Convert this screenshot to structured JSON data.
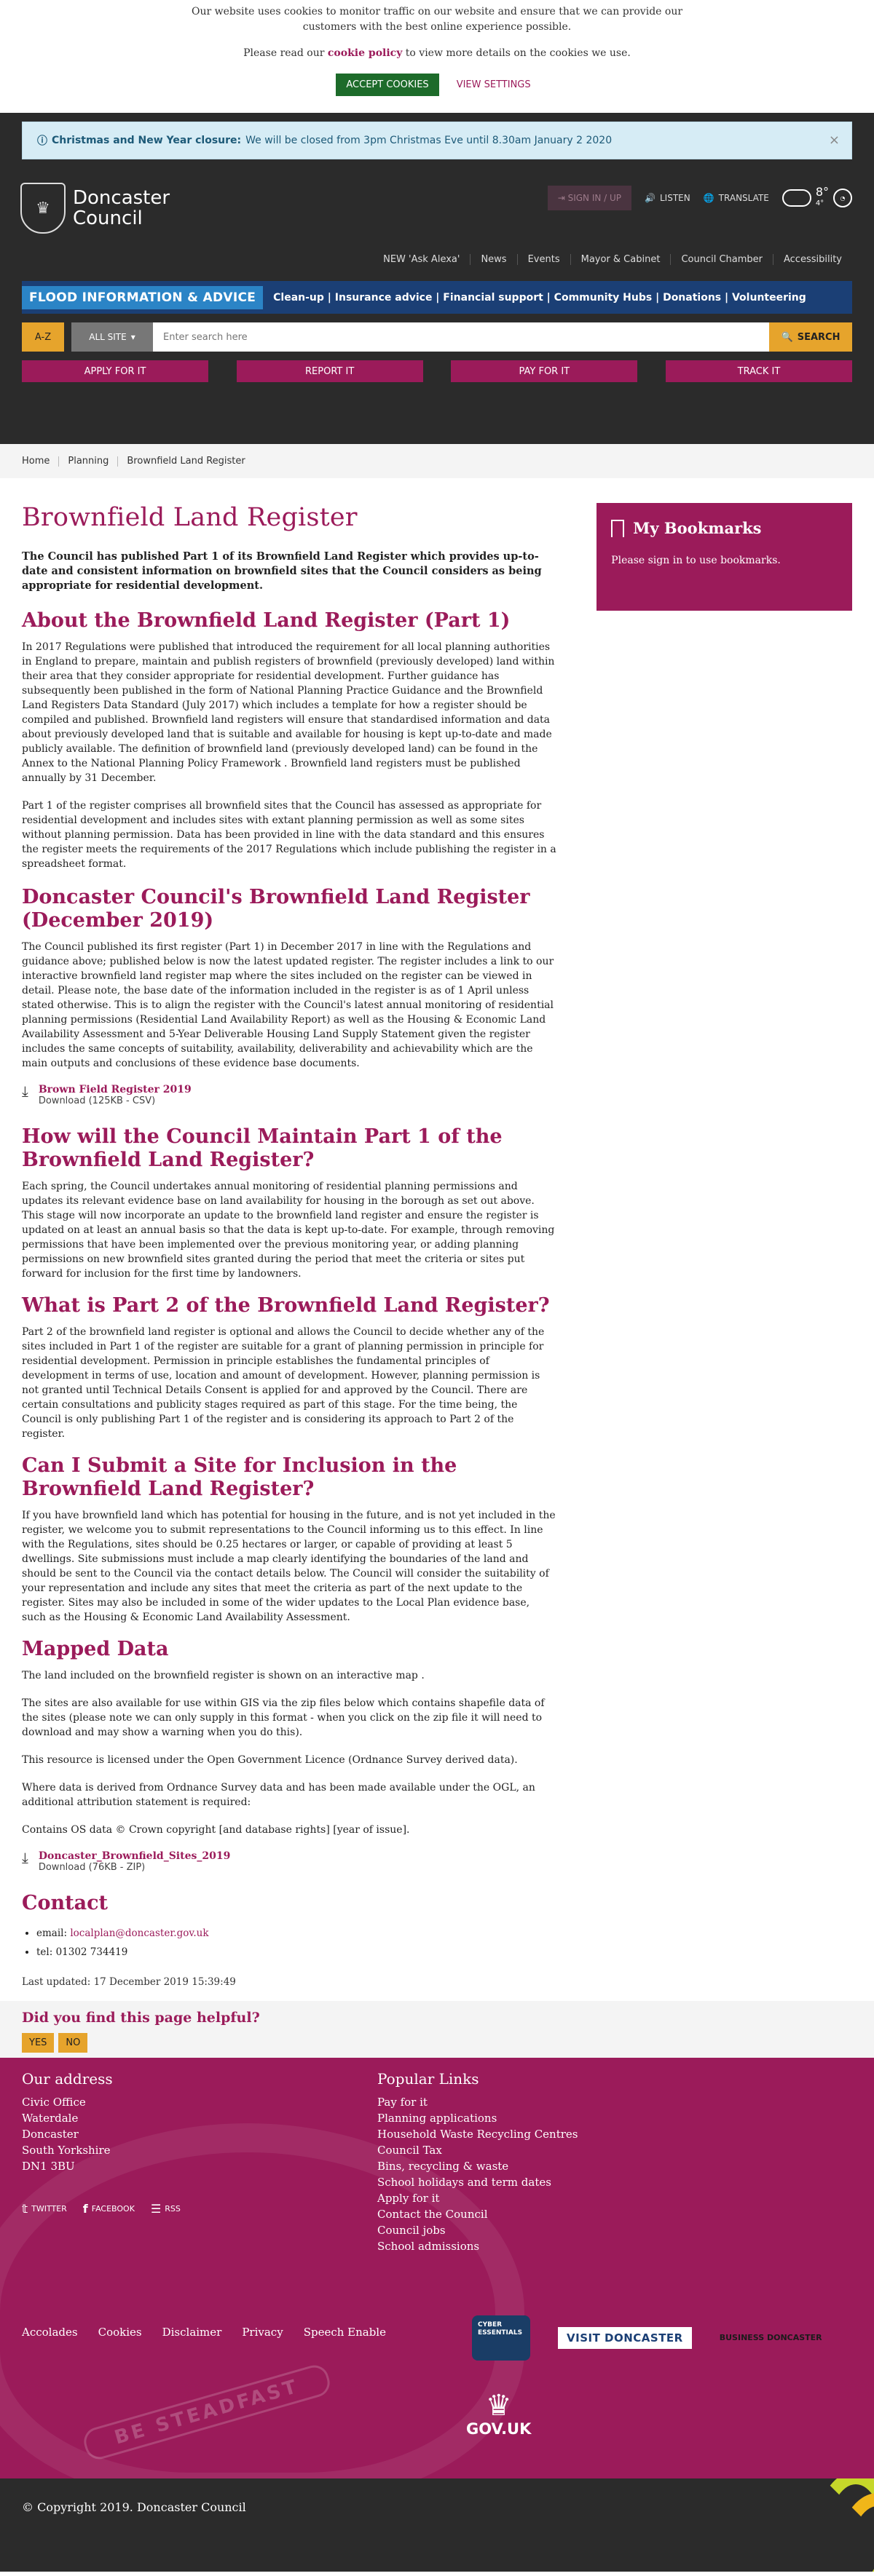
{
  "cookie": {
    "line1": "Our website uses cookies to monitor traffic on our website and ensure that we can provide our customers with the best online experience possible.",
    "read_prefix": "Please read our ",
    "policy_link": "cookie policy",
    "read_suffix": " to view more details on the cookies we use.",
    "accept": "ACCEPT COOKIES",
    "view": "VIEW SETTINGS"
  },
  "notice": {
    "title": "Christmas and New Year closure:",
    "text": "We will be closed from 3pm Christmas Eve until 8.30am January 2 2020",
    "close": "×"
  },
  "header": {
    "logo_line1": "Doncaster",
    "logo_line2": "Council",
    "signin": "SIGN IN / UP",
    "listen": "LISTEN",
    "translate": "TRANSLATE",
    "temp_high": "8°",
    "temp_low": "4°",
    "nav": [
      "NEW 'Ask Alexa'",
      "News",
      "Events",
      "Mayor & Cabinet",
      "Council Chamber",
      "Accessibility"
    ],
    "flood_tag": "FLOOD INFORMATION & ADVICE",
    "flood_links": "Clean-up | Insurance advice | Financial support | Community Hubs | Donations | Volunteering",
    "az": "A-Z",
    "all_site": "ALL SITE",
    "search_placeholder": "Enter search here",
    "search_btn": "SEARCH",
    "actions": [
      "APPLY FOR IT",
      "REPORT IT",
      "PAY FOR IT",
      "TRACK IT"
    ]
  },
  "breadcrumb": [
    "Home",
    "Planning",
    "Brownfield Land Register"
  ],
  "page": {
    "title": "Brownfield Land Register",
    "lead": "The Council has published Part 1 of its Brownfield Land Register which provides up-to-date and consistent information on brownfield sites that the Council considers as being appropriate for residential development.",
    "h_about": "About the Brownfield Land Register (Part 1)",
    "p_about1": "In 2017 Regulations were published that introduced the requirement for all local planning authorities in England to prepare, maintain and publish registers of brownfield (previously developed) land within their area that they consider appropriate for residential development. Further guidance has subsequently been published in the form of National Planning Practice Guidance and the Brownfield Land Registers Data Standard (July 2017) which includes a template for how a register should be compiled and published. Brownfield land registers will ensure that standardised information and data about previously developed land that is suitable and available for housing is kept up-to-date and made publicly available. The definition of brownfield land (previously developed land) can be found in the Annex to the National Planning Policy Framework . Brownfield land registers must be published annually by 31 December.",
    "p_about2": "Part 1 of the register comprises all brownfield sites that the Council has assessed as appropriate for residential development and includes sites with extant planning permission as well as some sites without planning permission. Data has been provided in line with the data standard and this ensures the register meets the requirements of the 2017 Regulations which include publishing the register in a spreadsheet format.",
    "h_dec": "Doncaster Council's Brownfield Land Register (December 2019)",
    "p_dec": "The Council published its first register (Part 1) in December 2017 in line with the Regulations and guidance above; published below is now the latest updated register. The register includes a link to our interactive brownfield land register map where the sites included on the register can be viewed in detail. Please note, the base date of the information included in the register is as of 1 April unless stated otherwise. This is to align the register with the Council's latest annual monitoring of residential planning permissions (Residential Land Availability Report) as well as the Housing & Economic Land Availability Assessment and 5-Year Deliverable Housing Land Supply Statement given the register includes the same concepts of suitability, availability, deliverability and achievability which are the main outputs and conclusions of these evidence base documents.",
    "dl1_name": "Brown Field Register 2019",
    "dl1_meta": "Download (125KB - CSV)",
    "h_maintain": "How will the Council Maintain Part 1 of the Brownfield Land Register?",
    "p_maintain": "Each spring, the Council undertakes annual monitoring of residential planning permissions and updates its relevant evidence base on land availability for housing in the borough as set out above. This stage will now incorporate an update to the brownfield land register and ensure the register is updated on at least an annual basis so that the data is kept up-to-date. For example, through removing permissions that have been implemented over the previous monitoring year, or adding planning permissions on new brownfield sites granted during the period that meet the criteria or sites put forward for inclusion for the first time by landowners.",
    "h_part2": "What is Part 2 of the Brownfield Land Register?",
    "p_part2": "Part 2 of the brownfield land register is optional and allows the Council to decide whether any of the sites included in Part 1 of the register are suitable for a grant of planning permission in principle for residential development. Permission in principle establishes the fundamental principles of development in terms of use, location and amount of development. However, planning permission is not granted until Technical Details Consent is applied for and approved by the Council. There are certain consultations and publicity stages required as part of this stage. For the time being, the Council is only publishing Part 1 of the register and is considering its approach to Part 2 of the register.",
    "h_submit": "Can I Submit a Site for Inclusion in the Brownfield Land Register?",
    "p_submit": "If you have brownfield land which has potential for housing in the future, and is not yet included in the register, we welcome you to submit representations to the Council informing us to this effect. In line with the Regulations, sites should be 0.25 hectares or larger, or capable of providing at least 5 dwellings. Site submissions must include a map clearly identifying the boundaries of the land and should be sent to the Council via the contact details below. The Council will consider the suitability of your representation and include any sites that meet the criteria as part of the next update to the register. Sites may also be included in some of the wider updates to the Local Plan evidence base, such as the Housing & Economic Land Availability Assessment.",
    "h_mapped": "Mapped Data",
    "p_mapped1": "The land included on the brownfield register is shown on an interactive map .",
    "p_mapped2": "The sites are also available for use within GIS via the zip files below which contains shapefile data of the sites (please note we can only supply in this format - when you click on the zip file it will need to download and may show a warning when you do this).",
    "p_mapped3": "This resource is licensed under the Open Government Licence (Ordnance Survey derived data).",
    "p_mapped4": "Where data is derived from Ordnance Survey data and has been made available under the OGL, an additional attribution statement is required:",
    "p_mapped5": "Contains OS data © Crown copyright [and database rights] [year of issue].",
    "dl2_name": "Doncaster_Brownfield_Sites_2019",
    "dl2_meta": "Download (76KB - ZIP)",
    "h_contact": "Contact",
    "email_label": "email: ",
    "email": "localplan@doncaster.gov.uk",
    "tel": "tel: 01302 734419",
    "updated": "Last updated: 17 December 2019 15:39:49"
  },
  "bookmarks": {
    "title": "My Bookmarks",
    "text": "Please sign in to use bookmarks."
  },
  "helpful": {
    "question": "Did you find this page helpful?",
    "yes": "YES",
    "no": "NO"
  },
  "footer": {
    "address_title": "Our address",
    "address": [
      "Civic Office",
      "Waterdale",
      "Doncaster",
      "South Yorkshire",
      "DN1 3BU"
    ],
    "links_title": "Popular Links",
    "links": [
      "Pay for it",
      "Planning applications",
      "Household Waste Recycling Centres",
      "Council Tax",
      "Bins, recycling & waste",
      "School holidays and term dates",
      "Apply for it",
      "Contact the Council",
      "Council jobs",
      "School admissions"
    ],
    "social": [
      "TWITTER",
      "FACEBOOK",
      "RSS"
    ],
    "legal": [
      "Accolades",
      "Cookies",
      "Disclaimer",
      "Privacy",
      "Speech Enable"
    ],
    "motto": "BE STEADFAST",
    "cyber_badge": "CYBER ESSENTIALS",
    "visit_badge": "VISIT DONCASTER",
    "biz_badge": "BUSINESS DONCASTER",
    "gov": "GOV.UK",
    "copyright": "© Copyright 2019. Doncaster Council"
  }
}
